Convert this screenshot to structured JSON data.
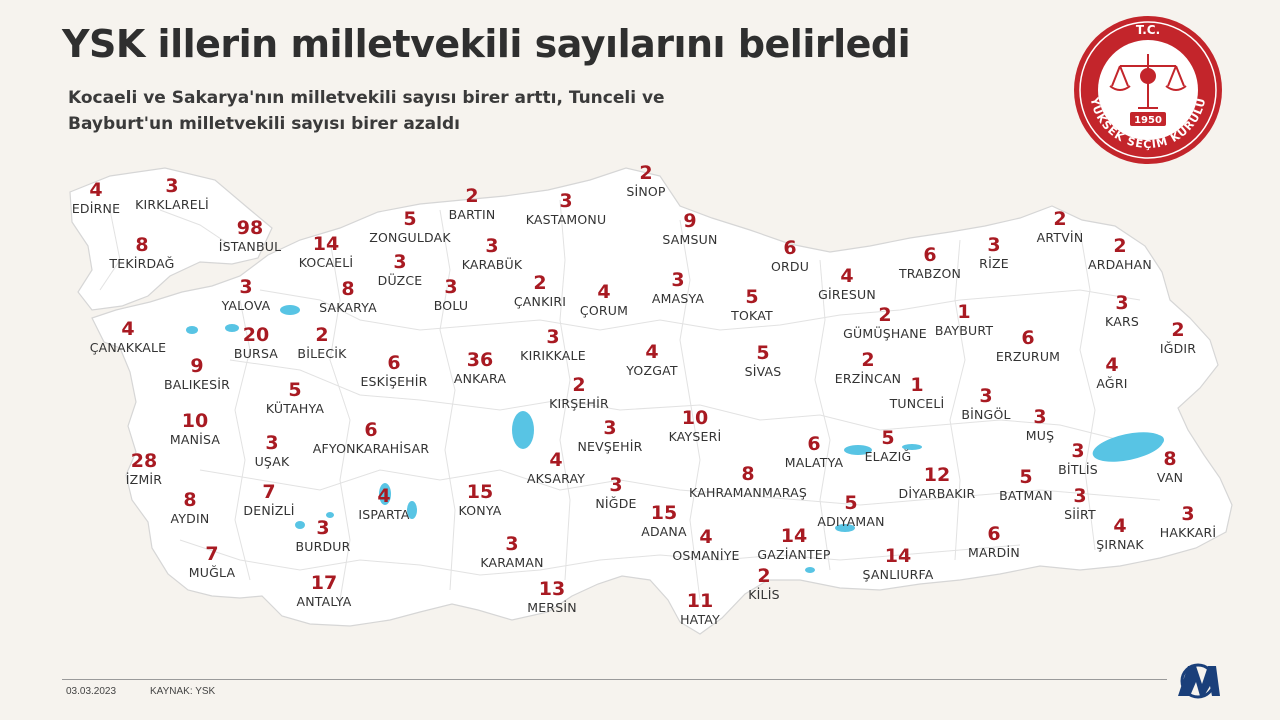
{
  "header": {
    "title": "YSK illerin milletvekili sayılarını belirledi",
    "subtitle_line1": "Kocaeli ve Sakarya'nın milletvekili sayısı birer arttı, Tunceli ve",
    "subtitle_line2": "Bayburt'un milletvekili sayısı birer azaldı"
  },
  "seal": {
    "top_text": "T.C.",
    "ring_text": "YÜKSEK SEÇİM KURULU",
    "year": "1950",
    "icon": "scales-of-justice-icon",
    "color": "#c3252b"
  },
  "footer": {
    "date": "03.03.2023",
    "source": "KAYNAK: YSK",
    "logo_icon": "aa-logo-icon"
  },
  "colors": {
    "number": "#a81a22",
    "name": "#333333",
    "land": "#ffffff",
    "border": "#d9d9d9",
    "water": "#58c4e4",
    "background": "#f6f3ee"
  },
  "provinces": [
    {
      "name": "EDİRNE",
      "seats": "4"
    },
    {
      "name": "KIRKLARELİ",
      "seats": "3"
    },
    {
      "name": "TEKİRDAĞ",
      "seats": "8"
    },
    {
      "name": "İSTANBUL",
      "seats": "98"
    },
    {
      "name": "KOCAELİ",
      "seats": "14"
    },
    {
      "name": "ZONGULDAK",
      "seats": "5"
    },
    {
      "name": "BARTIN",
      "seats": "2"
    },
    {
      "name": "KASTAMONU",
      "seats": "3"
    },
    {
      "name": "SİNOP",
      "seats": "2"
    },
    {
      "name": "SAMSUN",
      "seats": "9"
    },
    {
      "name": "KARABÜK",
      "seats": "3"
    },
    {
      "name": "DÜZCE",
      "seats": "3"
    },
    {
      "name": "SAKARYA",
      "seats": "8"
    },
    {
      "name": "YALOVA",
      "seats": "3"
    },
    {
      "name": "BOLU",
      "seats": "3"
    },
    {
      "name": "ÇANKIRI",
      "seats": "2"
    },
    {
      "name": "ÇORUM",
      "seats": "4"
    },
    {
      "name": "AMASYA",
      "seats": "3"
    },
    {
      "name": "ORDU",
      "seats": "6"
    },
    {
      "name": "TOKAT",
      "seats": "5"
    },
    {
      "name": "GİRESUN",
      "seats": "4"
    },
    {
      "name": "TRABZON",
      "seats": "6"
    },
    {
      "name": "RİZE",
      "seats": "3"
    },
    {
      "name": "ARTVİN",
      "seats": "2"
    },
    {
      "name": "ARDAHAN",
      "seats": "2"
    },
    {
      "name": "KARS",
      "seats": "3"
    },
    {
      "name": "IĞDIR",
      "seats": "2"
    },
    {
      "name": "ÇANAKKALE",
      "seats": "4"
    },
    {
      "name": "BURSA",
      "seats": "20"
    },
    {
      "name": "BİLECİK",
      "seats": "2"
    },
    {
      "name": "GÜMÜŞHANE",
      "seats": "2"
    },
    {
      "name": "BAYBURT",
      "seats": "1"
    },
    {
      "name": "ERZURUM",
      "seats": "6"
    },
    {
      "name": "AĞRI",
      "seats": "4"
    },
    {
      "name": "BALIKESİR",
      "seats": "9"
    },
    {
      "name": "ESKİŞEHİR",
      "seats": "6"
    },
    {
      "name": "ANKARA",
      "seats": "36"
    },
    {
      "name": "KIRIKKALE",
      "seats": "3"
    },
    {
      "name": "YOZGAT",
      "seats": "4"
    },
    {
      "name": "SİVAS",
      "seats": "5"
    },
    {
      "name": "ERZİNCAN",
      "seats": "2"
    },
    {
      "name": "TUNCELİ",
      "seats": "1"
    },
    {
      "name": "BİNGÖL",
      "seats": "3"
    },
    {
      "name": "KÜTAHYA",
      "seats": "5"
    },
    {
      "name": "KIRŞEHİR",
      "seats": "2"
    },
    {
      "name": "MUŞ",
      "seats": "3"
    },
    {
      "name": "MANİSA",
      "seats": "10"
    },
    {
      "name": "UŞAK",
      "seats": "3"
    },
    {
      "name": "AFYONKARAHİSAR",
      "seats": "6"
    },
    {
      "name": "NEVŞEHİR",
      "seats": "3"
    },
    {
      "name": "KAYSERİ",
      "seats": "10"
    },
    {
      "name": "MALATYA",
      "seats": "6"
    },
    {
      "name": "ELAZIĞ",
      "seats": "5"
    },
    {
      "name": "BİTLİS",
      "seats": "3"
    },
    {
      "name": "VAN",
      "seats": "8"
    },
    {
      "name": "İZMİR",
      "seats": "28"
    },
    {
      "name": "DENİZLİ",
      "seats": "7"
    },
    {
      "name": "ISPARTA",
      "seats": "4"
    },
    {
      "name": "KONYA",
      "seats": "15"
    },
    {
      "name": "AKSARAY",
      "seats": "4"
    },
    {
      "name": "NİĞDE",
      "seats": "3"
    },
    {
      "name": "KAHRAMANMARAŞ",
      "seats": "8"
    },
    {
      "name": "DİYARBAKIR",
      "seats": "12"
    },
    {
      "name": "BATMAN",
      "seats": "5"
    },
    {
      "name": "SİİRT",
      "seats": "3"
    },
    {
      "name": "AYDIN",
      "seats": "8"
    },
    {
      "name": "BURDUR",
      "seats": "3"
    },
    {
      "name": "ADANA",
      "seats": "15"
    },
    {
      "name": "ADIYAMAN",
      "seats": "5"
    },
    {
      "name": "ŞIRNAK",
      "seats": "4"
    },
    {
      "name": "HAKKARİ",
      "seats": "3"
    },
    {
      "name": "MUĞLA",
      "seats": "7"
    },
    {
      "name": "KARAMAN",
      "seats": "3"
    },
    {
      "name": "OSMANİYE",
      "seats": "4"
    },
    {
      "name": "GAZİANTEP",
      "seats": "14"
    },
    {
      "name": "ŞANLIURFA",
      "seats": "14"
    },
    {
      "name": "MARDİN",
      "seats": "6"
    },
    {
      "name": "ANTALYA",
      "seats": "17"
    },
    {
      "name": "MERSİN",
      "seats": "13"
    },
    {
      "name": "KİLİS",
      "seats": "2"
    },
    {
      "name": "HATAY",
      "seats": "11"
    }
  ]
}
